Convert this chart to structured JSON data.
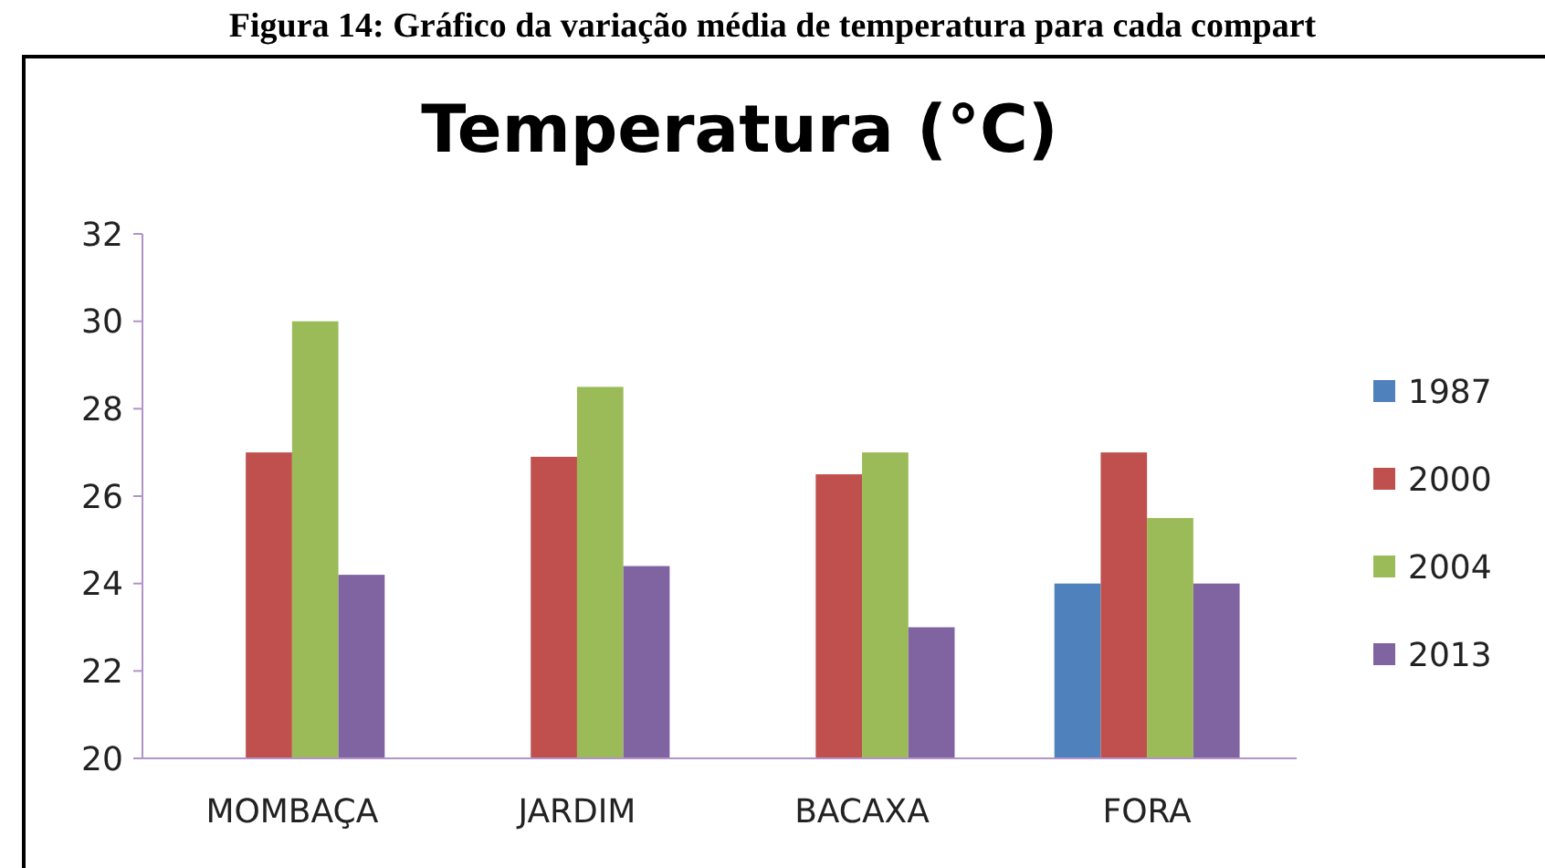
{
  "chart_data": {
    "type": "bar",
    "title": "Temperatura (°C)",
    "annotations": [
      "Figura 14: Gráfico da variação média de temperatura para cada compart"
    ],
    "categories": [
      "MOMBAÇA",
      "JARDIM",
      "BACAXA",
      "FORA"
    ],
    "series": [
      {
        "name": "1987",
        "color": "#4f81bd",
        "values": [
          null,
          null,
          null,
          24
        ]
      },
      {
        "name": "2000",
        "color": "#c0504d",
        "values": [
          27,
          26.9,
          26.5,
          27
        ]
      },
      {
        "name": "2004",
        "color": "#9bbb59",
        "values": [
          30,
          28.5,
          27,
          25.5
        ]
      },
      {
        "name": "2013",
        "color": "#8064a2",
        "values": [
          24.2,
          24.4,
          23,
          24
        ]
      }
    ],
    "ylim": [
      20,
      32
    ],
    "yticks": [
      20,
      22,
      24,
      26,
      28,
      30,
      32
    ],
    "grid": false,
    "legend": "right"
  }
}
